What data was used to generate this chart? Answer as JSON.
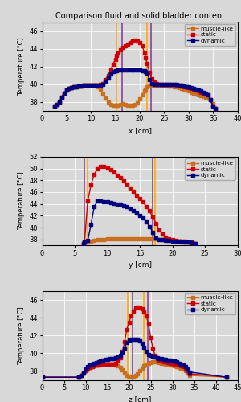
{
  "title": "Comparison fluid and solid bladder content",
  "legend_entries": [
    "muscle-like",
    "static",
    "dynamic"
  ],
  "colors": {
    "muscle_like": "#c87020",
    "static": "#cc0000",
    "dynamic": "#000080"
  },
  "marker": "s",
  "markersize": 2.5,
  "linewidth": 1.0,
  "vline_yellow": "#ffaa00",
  "vline_purple": "#884499",
  "vline_lw": 1.2,
  "bg_color": "#d8d8d8",
  "plots": [
    {
      "xlabel": "x [cm]",
      "ylabel": "Temperature [°C]",
      "xlim": [
        0,
        40
      ],
      "ylim": [
        37,
        47
      ],
      "yticks": [
        38,
        40,
        42,
        44,
        46
      ],
      "xticks": [
        0,
        5,
        10,
        15,
        20,
        25,
        30,
        35,
        40
      ],
      "vlines_yellow": [
        15.2,
        21.5
      ],
      "vlines_purple": [
        16.3,
        22.3
      ],
      "muscle_x": [
        2.5,
        3,
        3.5,
        4,
        4.5,
        5,
        5.5,
        6,
        6.5,
        7,
        7.5,
        8,
        8.5,
        9,
        9.5,
        10,
        10.5,
        11,
        11.5,
        12,
        12.5,
        13,
        13.5,
        14,
        14.5,
        15,
        15.3,
        15.6,
        16,
        16.5,
        17,
        17.5,
        18,
        18.5,
        19,
        19.5,
        20,
        20.5,
        21,
        21.2,
        21.5,
        22,
        22.5,
        23,
        23.5,
        24,
        24.5,
        25,
        25.5,
        26,
        26.5,
        27,
        27.5,
        28,
        28.5,
        29,
        29.5,
        30,
        30.5,
        31,
        31.5,
        32,
        32.5,
        33,
        33.5,
        34,
        34.5,
        35,
        35.5
      ],
      "muscle_y": [
        37.5,
        37.7,
        38.0,
        38.5,
        39.0,
        39.3,
        39.5,
        39.6,
        39.7,
        39.7,
        39.75,
        39.8,
        39.85,
        39.85,
        39.9,
        39.9,
        39.9,
        39.85,
        39.7,
        39.4,
        38.9,
        38.4,
        38.0,
        37.7,
        37.6,
        37.6,
        37.6,
        37.6,
        37.7,
        37.8,
        37.7,
        37.6,
        37.6,
        37.6,
        37.7,
        37.9,
        38.3,
        38.8,
        39.2,
        39.4,
        39.7,
        39.8,
        39.85,
        39.9,
        39.9,
        39.9,
        39.9,
        39.9,
        39.85,
        39.8,
        39.75,
        39.7,
        39.65,
        39.6,
        39.5,
        39.4,
        39.3,
        39.2,
        39.1,
        39.0,
        38.9,
        38.8,
        38.7,
        38.6,
        38.5,
        38.4,
        38.2,
        37.8,
        37.2
      ],
      "static_x": [
        2.5,
        3,
        3.5,
        4,
        4.5,
        5,
        5.5,
        6,
        6.5,
        7,
        7.5,
        8,
        8.5,
        9,
        9.5,
        10,
        10.5,
        11,
        11.5,
        12,
        12.5,
        13,
        13.5,
        14,
        14.5,
        15,
        15.3,
        15.6,
        16,
        16.5,
        17,
        17.5,
        18,
        18.5,
        19,
        19.5,
        20,
        20.5,
        21,
        21.2,
        21.5,
        22,
        22.5,
        23,
        23.5,
        24,
        24.5,
        25,
        25.5,
        26,
        26.5,
        27,
        27.5,
        28,
        28.5,
        29,
        29.5,
        30,
        30.5,
        31,
        31.5,
        32,
        32.5,
        33,
        33.5,
        34,
        34.5,
        35,
        35.5
      ],
      "static_y": [
        37.5,
        37.7,
        38.0,
        38.5,
        39.0,
        39.3,
        39.5,
        39.6,
        39.7,
        39.7,
        39.75,
        39.8,
        39.85,
        39.85,
        39.9,
        39.9,
        39.9,
        39.9,
        39.9,
        39.95,
        40.1,
        40.5,
        41.0,
        41.6,
        42.2,
        42.8,
        43.2,
        43.5,
        43.9,
        44.1,
        44.3,
        44.5,
        44.7,
        44.9,
        45.0,
        44.9,
        44.7,
        44.3,
        43.5,
        43.0,
        42.3,
        41.3,
        40.6,
        40.2,
        40.1,
        40.0,
        40.0,
        40.0,
        40.0,
        40.0,
        40.0,
        39.95,
        39.9,
        39.85,
        39.8,
        39.7,
        39.65,
        39.6,
        39.5,
        39.4,
        39.3,
        39.2,
        39.1,
        39.0,
        38.9,
        38.8,
        38.2,
        37.5,
        37.2
      ],
      "dynamic_x": [
        2.5,
        3,
        3.5,
        4,
        4.5,
        5,
        5.5,
        6,
        6.5,
        7,
        7.5,
        8,
        8.5,
        9,
        9.5,
        10,
        10.5,
        11,
        11.5,
        12,
        12.5,
        13,
        13.5,
        14,
        14.5,
        15,
        15.3,
        15.6,
        16,
        16.5,
        17,
        17.5,
        18,
        18.5,
        19,
        19.5,
        20,
        20.5,
        21,
        21.2,
        21.5,
        22,
        22.5,
        23,
        23.5,
        24,
        24.5,
        25,
        25.5,
        26,
        26.5,
        27,
        27.5,
        28,
        28.5,
        29,
        29.5,
        30,
        30.5,
        31,
        31.5,
        32,
        32.5,
        33,
        33.5,
        34,
        34.5,
        35,
        35.5
      ],
      "dynamic_y": [
        37.5,
        37.7,
        38.0,
        38.5,
        39.0,
        39.3,
        39.5,
        39.6,
        39.7,
        39.7,
        39.75,
        39.8,
        39.85,
        39.85,
        39.9,
        39.9,
        39.9,
        39.9,
        39.9,
        39.9,
        40.0,
        40.3,
        40.7,
        41.1,
        41.4,
        41.5,
        41.55,
        41.6,
        41.6,
        41.6,
        41.6,
        41.6,
        41.6,
        41.6,
        41.6,
        41.6,
        41.6,
        41.55,
        41.5,
        41.4,
        41.2,
        40.5,
        40.1,
        40.0,
        40.0,
        40.0,
        40.0,
        40.0,
        40.0,
        40.0,
        40.0,
        40.0,
        39.95,
        39.9,
        39.85,
        39.8,
        39.7,
        39.65,
        39.6,
        39.5,
        39.4,
        39.3,
        39.2,
        39.1,
        39.0,
        38.8,
        38.2,
        37.5,
        37.2
      ]
    },
    {
      "xlabel": "y [cm]",
      "ylabel": "Temperature [°C]",
      "xlim": [
        0,
        30
      ],
      "ylim": [
        37,
        52
      ],
      "yticks": [
        38,
        40,
        42,
        44,
        46,
        48,
        50,
        52
      ],
      "xticks": [
        0,
        5,
        10,
        15,
        20,
        25,
        30
      ],
      "vlines_yellow": [
        7.0,
        17.3
      ],
      "vlines_purple": [
        6.5,
        17.0
      ],
      "muscle_x": [
        6.3,
        6.5,
        7.0,
        7.5,
        8,
        8.5,
        9,
        9.5,
        10,
        10.5,
        11,
        11.5,
        12,
        12.5,
        13,
        13.5,
        14,
        14.5,
        15,
        15.5,
        16,
        16.5,
        17,
        17.5,
        18,
        18.5,
        19,
        19.5,
        20,
        20.5,
        21,
        21.5,
        22,
        22.5,
        23,
        23.5
      ],
      "muscle_y": [
        37.3,
        37.5,
        37.6,
        37.7,
        37.8,
        37.9,
        38.0,
        38.0,
        38.05,
        38.05,
        38.05,
        38.05,
        38.05,
        38.05,
        38.05,
        38.05,
        38.05,
        38.05,
        38.05,
        38.05,
        38.05,
        38.05,
        38.05,
        38.05,
        38.0,
        37.95,
        37.9,
        37.85,
        37.8,
        37.75,
        37.7,
        37.65,
        37.6,
        37.5,
        37.45,
        37.3
      ],
      "static_x": [
        6.3,
        6.5,
        7.0,
        7.5,
        8,
        8.5,
        9,
        9.5,
        10,
        10.5,
        11,
        11.5,
        12,
        12.5,
        13,
        13.5,
        14,
        14.5,
        15,
        15.5,
        16,
        16.5,
        17,
        17.5,
        18,
        18.5,
        19,
        19.5,
        20,
        20.5,
        21,
        21.5,
        22,
        22.5,
        23,
        23.5
      ],
      "static_y": [
        37.3,
        37.5,
        44.5,
        47.2,
        49.0,
        50.0,
        50.3,
        50.3,
        50.1,
        49.8,
        49.4,
        48.9,
        48.4,
        47.9,
        47.3,
        46.7,
        46.1,
        45.5,
        44.9,
        44.3,
        43.6,
        42.8,
        41.8,
        40.7,
        39.6,
        38.9,
        38.4,
        38.1,
        37.9,
        37.8,
        37.75,
        37.7,
        37.65,
        37.6,
        37.5,
        37.3
      ],
      "dynamic_x": [
        6.3,
        6.5,
        7.0,
        7.5,
        8,
        8.5,
        9,
        9.5,
        10,
        10.5,
        11,
        11.5,
        12,
        12.5,
        13,
        13.5,
        14,
        14.5,
        15,
        15.5,
        16,
        16.5,
        17,
        17.5,
        18,
        18.5,
        19,
        19.5,
        20,
        20.5,
        21,
        21.5,
        22,
        22.5,
        23,
        23.5
      ],
      "dynamic_y": [
        37.3,
        37.5,
        37.8,
        40.5,
        43.5,
        44.5,
        44.5,
        44.4,
        44.3,
        44.2,
        44.1,
        44.0,
        43.9,
        43.7,
        43.5,
        43.2,
        42.9,
        42.5,
        42.1,
        41.6,
        41.0,
        40.2,
        39.2,
        38.3,
        38.0,
        37.9,
        37.85,
        37.8,
        37.75,
        37.7,
        37.65,
        37.6,
        37.55,
        37.5,
        37.45,
        37.3
      ]
    },
    {
      "xlabel": "z [cm]",
      "ylabel": "Temperature [°C]",
      "xlim": [
        0,
        45
      ],
      "ylim": [
        37,
        47
      ],
      "yticks": [
        38,
        40,
        42,
        44,
        46
      ],
      "xticks": [
        0,
        5,
        10,
        15,
        20,
        25,
        30,
        35,
        40,
        45
      ],
      "vlines_yellow": [
        19.8,
        23.5
      ],
      "vlines_purple": [
        20.8,
        24.3
      ],
      "muscle_x": [
        0,
        8.5,
        9,
        9.5,
        10,
        10.5,
        11,
        11.5,
        12,
        12.5,
        13,
        13.5,
        14,
        14.5,
        15,
        15.5,
        16,
        16.5,
        17,
        17.5,
        18,
        18.5,
        19,
        19.5,
        20,
        20.5,
        21,
        21.5,
        22,
        22.5,
        23,
        23.5,
        24,
        24.5,
        25,
        25.5,
        26,
        26.5,
        27,
        27.5,
        28,
        28.5,
        29,
        29.5,
        30,
        30.5,
        31,
        31.5,
        32,
        32.5,
        33,
        33.5,
        34,
        42.5
      ],
      "muscle_y": [
        37.3,
        37.3,
        37.5,
        37.8,
        38.0,
        38.2,
        38.4,
        38.5,
        38.6,
        38.65,
        38.7,
        38.75,
        38.8,
        38.8,
        38.8,
        38.8,
        38.8,
        38.75,
        38.7,
        38.6,
        38.4,
        38.1,
        37.8,
        37.5,
        37.4,
        37.3,
        37.4,
        37.5,
        37.7,
        38.0,
        38.3,
        38.6,
        38.8,
        38.9,
        38.95,
        39.0,
        39.0,
        39.0,
        38.95,
        38.9,
        38.85,
        38.8,
        38.75,
        38.7,
        38.65,
        38.6,
        38.5,
        38.4,
        38.3,
        38.2,
        38.0,
        37.8,
        37.5,
        37.3
      ],
      "static_x": [
        0,
        8.5,
        9,
        9.5,
        10,
        10.5,
        11,
        11.5,
        12,
        12.5,
        13,
        13.5,
        14,
        14.5,
        15,
        15.5,
        16,
        16.5,
        17,
        17.5,
        18,
        18.5,
        19,
        19.5,
        20,
        20.5,
        21,
        21.5,
        22,
        22.5,
        23,
        23.5,
        24,
        24.5,
        25,
        25.5,
        26,
        26.5,
        27,
        27.5,
        28,
        28.5,
        29,
        29.5,
        30,
        30.5,
        31,
        31.5,
        32,
        32.5,
        33,
        33.5,
        34,
        42.5
      ],
      "static_y": [
        37.3,
        37.3,
        37.5,
        37.8,
        38.0,
        38.2,
        38.4,
        38.5,
        38.6,
        38.65,
        38.7,
        38.75,
        38.8,
        38.8,
        38.8,
        38.8,
        38.8,
        38.8,
        38.9,
        39.1,
        39.5,
        40.2,
        41.3,
        42.7,
        43.5,
        44.2,
        44.8,
        45.1,
        45.2,
        45.1,
        45.0,
        44.7,
        44.2,
        43.3,
        41.8,
        40.6,
        39.8,
        39.4,
        39.2,
        39.1,
        39.05,
        39.0,
        38.95,
        38.9,
        38.85,
        38.8,
        38.75,
        38.7,
        38.6,
        38.5,
        38.3,
        38.0,
        37.7,
        37.3
      ],
      "dynamic_x": [
        0,
        8.5,
        9,
        9.5,
        10,
        10.5,
        11,
        11.5,
        12,
        12.5,
        13,
        13.5,
        14,
        14.5,
        15,
        15.5,
        16,
        16.5,
        17,
        17.5,
        18,
        18.5,
        19,
        19.5,
        20,
        20.5,
        21,
        21.5,
        22,
        22.5,
        23,
        23.5,
        24,
        24.5,
        25,
        25.5,
        26,
        26.5,
        27,
        27.5,
        28,
        28.5,
        29,
        29.5,
        30,
        30.5,
        31,
        31.5,
        32,
        32.5,
        33,
        33.5,
        34,
        42.5
      ],
      "dynamic_y": [
        37.3,
        37.3,
        37.5,
        37.8,
        38.2,
        38.5,
        38.7,
        38.8,
        38.9,
        38.95,
        39.0,
        39.1,
        39.2,
        39.3,
        39.35,
        39.4,
        39.4,
        39.4,
        39.5,
        39.6,
        39.8,
        40.1,
        40.6,
        41.2,
        41.5,
        41.6,
        41.6,
        41.6,
        41.55,
        41.4,
        41.1,
        40.7,
        40.2,
        39.9,
        39.75,
        39.65,
        39.55,
        39.5,
        39.45,
        39.4,
        39.35,
        39.3,
        39.25,
        39.2,
        39.15,
        39.1,
        39.0,
        38.9,
        38.8,
        38.7,
        38.5,
        38.2,
        37.9,
        37.3
      ]
    }
  ]
}
